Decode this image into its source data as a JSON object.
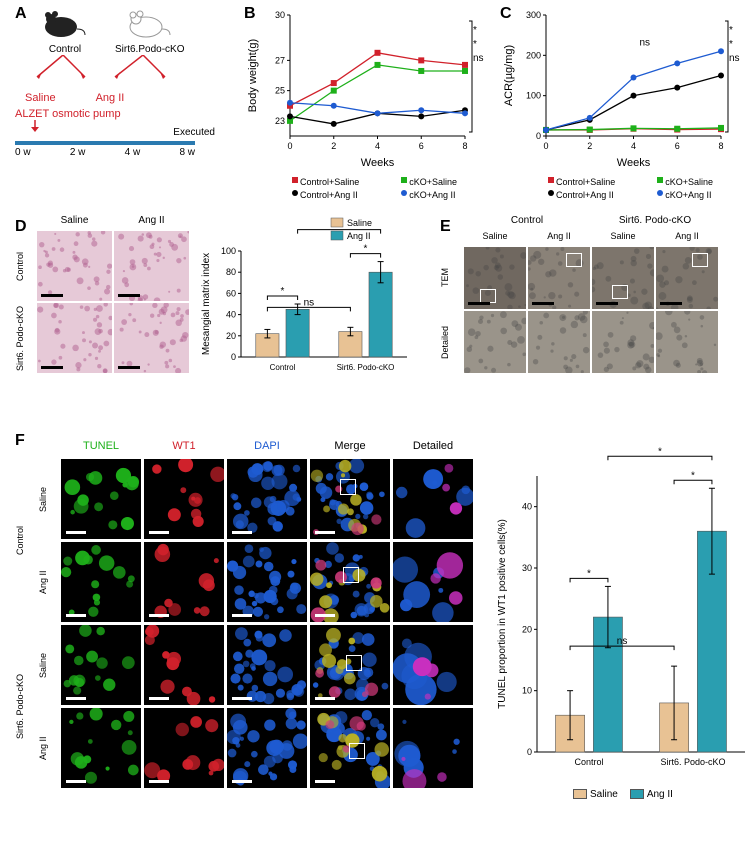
{
  "colors": {
    "red": "#d1212b",
    "green": "#1eb01a",
    "blue": "#1e5bd1",
    "teal": "#2a9eb0",
    "tan": "#e8c294",
    "black": "#000000",
    "timeline_blue": "#2a7ab0",
    "histo_bg": "#d9b8c9",
    "em_bg": "#888888"
  },
  "panelA": {
    "label": "A",
    "mouse_labels": [
      "Control",
      "Sirt6.Podo-cKO"
    ],
    "treatments": [
      "Saline",
      "Ang II"
    ],
    "pump_label": "ALZET osmotic pump",
    "executed_label": "Executed",
    "timeline_ticks": [
      "0 w",
      "2 w",
      "4 w",
      "8 w"
    ]
  },
  "panelB": {
    "label": "B",
    "type": "line",
    "ylabel": "Body weight(g)",
    "xlabel": "Weeks",
    "x": [
      0,
      2,
      4,
      6,
      8
    ],
    "ylim": [
      22,
      30
    ],
    "yticks": [
      23,
      25,
      27,
      30
    ],
    "series": [
      {
        "name": "Control+Saline",
        "marker": "square",
        "color": "#d1212b",
        "values": [
          24.0,
          25.5,
          27.5,
          27.0,
          26.7
        ]
      },
      {
        "name": "cKO+Saline",
        "marker": "square",
        "color": "#1eb01a",
        "values": [
          23.0,
          25.0,
          26.7,
          26.3,
          26.3
        ]
      },
      {
        "name": "Control+Ang II",
        "marker": "circle",
        "color": "#000000",
        "values": [
          23.3,
          22.8,
          23.5,
          23.3,
          23.7
        ]
      },
      {
        "name": "cKO+Ang II",
        "marker": "circle",
        "color": "#1e5bd1",
        "values": [
          24.2,
          24.0,
          23.5,
          23.7,
          23.5
        ]
      }
    ],
    "sig_right": [
      "*",
      "*",
      "ns"
    ],
    "legend": [
      "Control+Saline",
      "cKO+Saline",
      "Control+Ang II",
      "cKO+Ang II"
    ]
  },
  "panelC": {
    "label": "C",
    "type": "line",
    "ylabel": "ACR(µg/mg)",
    "xlabel": "Weeks",
    "x": [
      0,
      2,
      4,
      6,
      8
    ],
    "ylim": [
      0,
      300
    ],
    "yticks": [
      0,
      100,
      200,
      300
    ],
    "series": [
      {
        "name": "Control+Saline",
        "marker": "square",
        "color": "#d1212b",
        "values": [
          15,
          15,
          18,
          16,
          17
        ]
      },
      {
        "name": "cKO+Saline",
        "marker": "square",
        "color": "#1eb01a",
        "values": [
          15,
          16,
          19,
          18,
          20
        ]
      },
      {
        "name": "Control+Ang II",
        "marker": "circle",
        "color": "#000000",
        "values": [
          15,
          40,
          100,
          120,
          150
        ]
      },
      {
        "name": "cKO+Ang II",
        "marker": "circle",
        "color": "#1e5bd1",
        "values": [
          15,
          45,
          145,
          180,
          210
        ]
      }
    ],
    "sig_right": [
      "*",
      "*",
      "ns"
    ],
    "mid_label": "ns",
    "legend": [
      "Control+Saline",
      "cKO+Saline",
      "Control+Ang II",
      "cKO+Ang II"
    ]
  },
  "panelD": {
    "label": "D",
    "col_heads": [
      "Saline",
      "Ang II"
    ],
    "row_heads": [
      "Control",
      "Sirt6. Podo-cKO"
    ],
    "bar_chart": {
      "type": "grouped_bar",
      "ylabel": "Mesangial matrix index",
      "ylim": [
        0,
        100
      ],
      "yticks": [
        0,
        20,
        40,
        60,
        80,
        100
      ],
      "groups": [
        "Control",
        "Sirt6. Podo-cKO"
      ],
      "series": [
        {
          "name": "Saline",
          "color": "#e8c294",
          "values": [
            22,
            24
          ],
          "err": [
            4,
            4
          ]
        },
        {
          "name": "Ang II",
          "color": "#2a9eb0",
          "values": [
            45,
            80
          ],
          "err": [
            5,
            10
          ]
        }
      ],
      "sig_brackets": [
        {
          "from": "Control-Saline",
          "to": "Control-AngII",
          "label": "*"
        },
        {
          "from": "cKO-Saline",
          "to": "cKO-AngII",
          "label": "*"
        },
        {
          "from": "Control-Saline",
          "to": "cKO-Saline",
          "label": "ns"
        },
        {
          "from": "Control-AngII",
          "to": "cKO-AngII",
          "label": "*"
        }
      ]
    }
  },
  "panelE": {
    "label": "E",
    "top_heads": [
      "Control",
      "Sirt6. Podo-cKO"
    ],
    "sub_heads": [
      "Saline",
      "Ang II",
      "Saline",
      "Ang II"
    ],
    "row_heads": [
      "TEM",
      "Detailed"
    ]
  },
  "panelF": {
    "label": "F",
    "col_heads": [
      "TUNEL",
      "WT1",
      "DAPI",
      "Merge",
      "Detailed"
    ],
    "col_colors": [
      "#1eb01a",
      "#d1212b",
      "#1e5bd1",
      "#000000",
      "#000000"
    ],
    "group_labels": [
      "Control",
      "Sirt6. Podo-cKO"
    ],
    "row_labels": [
      "Saline",
      "Ang II",
      "Saline",
      "Ang II"
    ],
    "bar_chart": {
      "type": "grouped_bar",
      "ylabel": "TUNEL proportion in WT1 positive cells(%)",
      "ylim": [
        0,
        45
      ],
      "yticks": [
        0,
        10,
        20,
        30,
        40
      ],
      "groups": [
        "Control",
        "Sirt6. Podo-cKO"
      ],
      "series": [
        {
          "name": "Saline",
          "color": "#e8c294",
          "values": [
            6,
            8
          ],
          "err": [
            4,
            6
          ]
        },
        {
          "name": "Ang II",
          "color": "#2a9eb0",
          "values": [
            22,
            36
          ],
          "err": [
            5,
            7
          ]
        }
      ],
      "sig_brackets": [
        {
          "from": "Control-Saline",
          "to": "Control-AngII",
          "label": "*"
        },
        {
          "from": "cKO-Saline",
          "to": "cKO-AngII",
          "label": "*"
        },
        {
          "from": "Control-Saline",
          "to": "cKO-Saline",
          "label": "ns"
        },
        {
          "from": "Control-AngII",
          "to": "cKO-AngII",
          "label": "*"
        }
      ],
      "legend": [
        "Saline",
        "Ang II"
      ]
    }
  }
}
